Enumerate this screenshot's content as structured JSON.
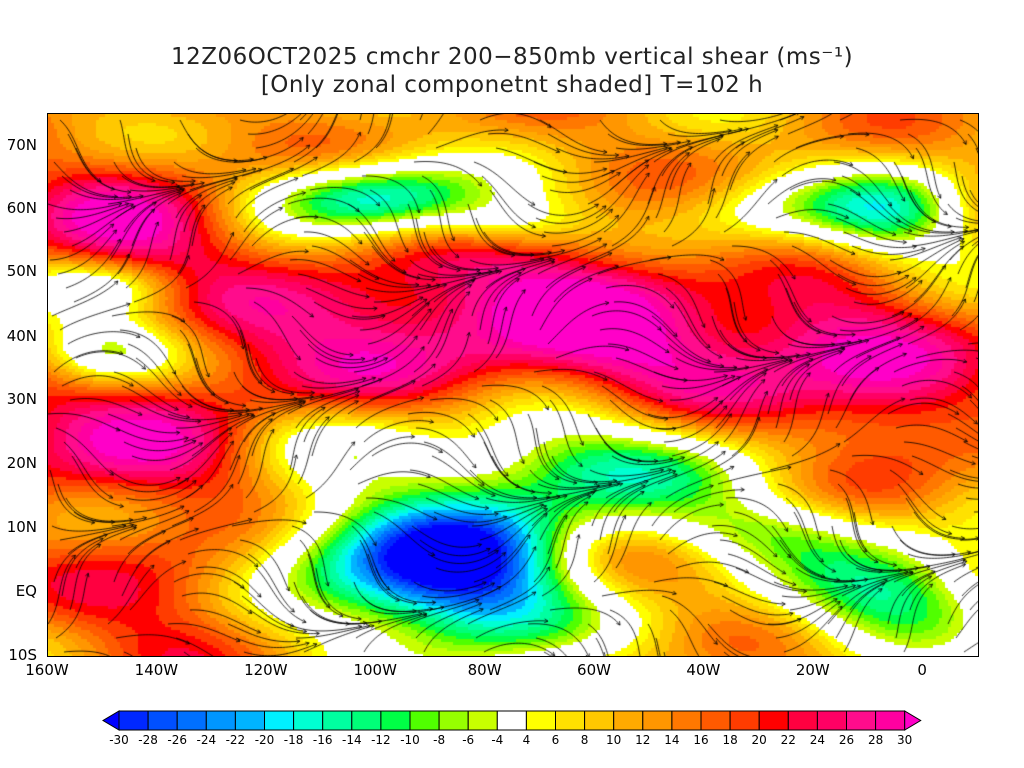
{
  "title": {
    "line1": "12Z06OCT2025 cmchr 200−850mb vertical shear (ms⁻¹)",
    "line2": "[Only zonal componetnt shaded] T=102 h"
  },
  "y_axis": [
    "70N",
    "60N",
    "50N",
    "40N",
    "30N",
    "20N",
    "10N",
    "EQ",
    "10S"
  ],
  "x_axis": [
    "160W",
    "140W",
    "120W",
    "100W",
    "80W",
    "60W",
    "40W",
    "20W",
    "0"
  ],
  "colorbar": {
    "labels": [
      "-30",
      "-28",
      "-26",
      "-24",
      "-22",
      "-20",
      "-18",
      "-16",
      "-14",
      "-12",
      "-10",
      "-8",
      "-6",
      "-4",
      "4",
      "6",
      "8",
      "10",
      "12",
      "14",
      "16",
      "18",
      "20",
      "22",
      "24",
      "26",
      "28",
      "30"
    ],
    "colors": [
      "#0028ff",
      "#0050ff",
      "#0070ff",
      "#0096ff",
      "#00b4ff",
      "#00f0ff",
      "#00ffd2",
      "#00ffa0",
      "#00ff78",
      "#00ff46",
      "#50ff00",
      "#96ff00",
      "#c8ff00",
      "#ffffff",
      "#ffff00",
      "#ffe100",
      "#ffc800",
      "#ffaa00",
      "#ff9600",
      "#ff7800",
      "#ff5a00",
      "#ff3c00",
      "#ff0000",
      "#ff0040",
      "#ff0064",
      "#ff0c8c",
      "#ff00a0"
    ],
    "low_arrow": "#0000ff",
    "high_arrow": "#ff00c8"
  }
}
